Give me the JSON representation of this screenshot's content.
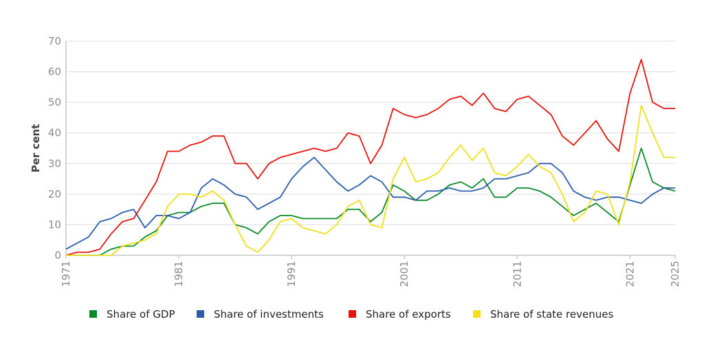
{
  "chart_data": {
    "type": "line",
    "title": "",
    "xlabel": "",
    "ylabel": "Per cent",
    "xlim": [
      1971,
      2025
    ],
    "ylim": [
      0,
      70
    ],
    "x_ticks": [
      1971,
      1981,
      1991,
      2001,
      2011,
      2021,
      2025
    ],
    "y_ticks": [
      0,
      10,
      20,
      30,
      40,
      50,
      60,
      70
    ],
    "grid": "horizontal",
    "legend_position": "bottom",
    "x": [
      1971,
      1972,
      1973,
      1974,
      1975,
      1976,
      1977,
      1978,
      1979,
      1980,
      1981,
      1982,
      1983,
      1984,
      1985,
      1986,
      1987,
      1988,
      1989,
      1990,
      1991,
      1992,
      1993,
      1994,
      1995,
      1996,
      1997,
      1998,
      1999,
      2000,
      2001,
      2002,
      2003,
      2004,
      2005,
      2006,
      2007,
      2008,
      2009,
      2010,
      2011,
      2012,
      2013,
      2014,
      2015,
      2016,
      2017,
      2018,
      2019,
      2020,
      2021,
      2022,
      2023,
      2024,
      2025
    ],
    "series": [
      {
        "name": "Share of GDP",
        "color": "#0a8a2a",
        "values": [
          0,
          0,
          0,
          0,
          2,
          3,
          3,
          6,
          8,
          13,
          14,
          14,
          16,
          17,
          17,
          10,
          9,
          7,
          11,
          13,
          13,
          12,
          12,
          12,
          12,
          15,
          15,
          11,
          14,
          23,
          21,
          18,
          18,
          20,
          23,
          24,
          22,
          25,
          19,
          19,
          22,
          22,
          21,
          19,
          16,
          13,
          15,
          17,
          14,
          11,
          23,
          35,
          24,
          22,
          21
        ]
      },
      {
        "name": "Share of investments",
        "color": "#2a5caa",
        "values": [
          2,
          4,
          6,
          11,
          12,
          14,
          15,
          9,
          13,
          13,
          12,
          14,
          22,
          25,
          23,
          20,
          19,
          15,
          17,
          19,
          25,
          29,
          32,
          28,
          24,
          21,
          23,
          26,
          24,
          19,
          19,
          18,
          21,
          21,
          22,
          21,
          21,
          22,
          25,
          25,
          26,
          27,
          30,
          30,
          27,
          21,
          19,
          18,
          19,
          19,
          18,
          17,
          20,
          22,
          22
        ]
      },
      {
        "name": "Share of exports",
        "color": "#e8120c",
        "values": [
          0,
          1,
          1,
          2,
          7,
          11,
          12,
          18,
          24,
          34,
          34,
          36,
          37,
          39,
          39,
          30,
          30,
          25,
          30,
          32,
          33,
          34,
          35,
          34,
          35,
          40,
          39,
          30,
          36,
          48,
          46,
          45,
          46,
          48,
          51,
          52,
          49,
          53,
          48,
          47,
          51,
          52,
          49,
          46,
          39,
          36,
          40,
          44,
          38,
          34,
          53,
          64,
          50,
          48,
          48
        ]
      },
      {
        "name": "Share of state revenues",
        "color": "#f0e01a",
        "values": [
          0,
          0,
          0,
          0,
          0,
          3,
          4,
          5,
          7,
          16,
          20,
          20,
          19,
          21,
          18,
          10,
          3,
          1,
          5,
          11,
          12,
          9,
          8,
          7,
          10,
          16,
          18,
          10,
          9,
          25,
          32,
          24,
          25,
          27,
          32,
          36,
          31,
          35,
          27,
          26,
          29,
          33,
          29,
          27,
          20,
          11,
          14,
          21,
          20,
          10,
          24,
          49,
          40,
          32,
          32
        ]
      }
    ]
  }
}
